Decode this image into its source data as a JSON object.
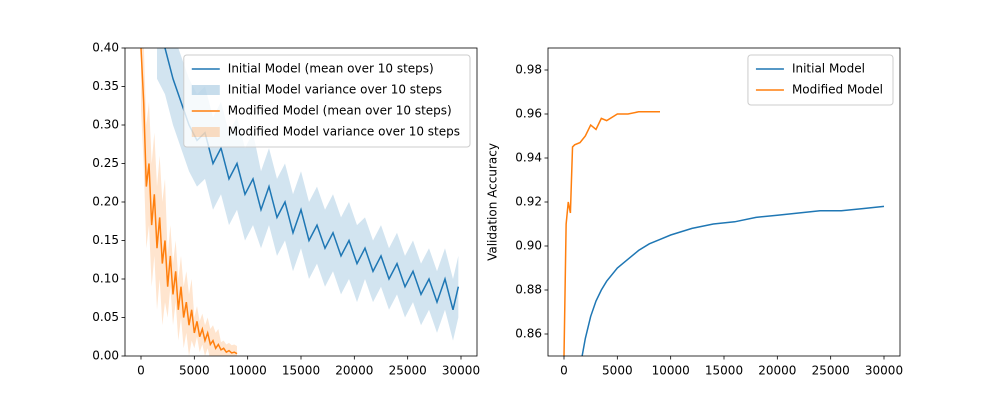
{
  "chart_data": [
    {
      "type": "line",
      "legend": "upper right",
      "xlim": [
        -1500,
        31500
      ],
      "xticks": [
        0,
        5000,
        10000,
        15000,
        20000,
        25000,
        30000
      ],
      "ylim": [
        0,
        0.4
      ],
      "yticks": [
        {
          "value": 0,
          "label": "0.00"
        },
        0.05,
        {
          "value": 0.1,
          "label": "0.10"
        },
        0.15,
        {
          "value": 0.2,
          "label": "0.20"
        },
        0.25,
        {
          "value": 0.3,
          "label": "0.30"
        },
        0.35,
        {
          "value": 0.4,
          "label": "0.40"
        }
      ],
      "series": [
        {
          "name": "Initial Model (mean over 10 steps)",
          "color": "#1f77b4",
          "x": [
            1500,
            2250,
            3000,
            3750,
            4500,
            5250,
            6000,
            6750,
            7500,
            8250,
            9000,
            9750,
            10500,
            11250,
            12000,
            12750,
            13500,
            14250,
            15000,
            15750,
            16500,
            17250,
            18000,
            18750,
            19500,
            20250,
            21000,
            21750,
            22500,
            23250,
            24000,
            24750,
            25500,
            26250,
            27000,
            27750,
            28500,
            29250,
            29750
          ],
          "values": [
            0.42,
            0.4,
            0.36,
            0.33,
            0.3,
            0.28,
            0.29,
            0.25,
            0.27,
            0.23,
            0.25,
            0.21,
            0.23,
            0.19,
            0.22,
            0.18,
            0.2,
            0.16,
            0.19,
            0.15,
            0.17,
            0.14,
            0.16,
            0.13,
            0.15,
            0.12,
            0.14,
            0.11,
            0.13,
            0.1,
            0.12,
            0.09,
            0.11,
            0.08,
            0.1,
            0.07,
            0.1,
            0.06,
            0.09
          ],
          "band": {
            "name": "Initial Model variance over 10 steps",
            "values": [
              0.06,
              0.06,
              0.06,
              0.06,
              0.06,
              0.06,
              0.06,
              0.06,
              0.06,
              0.06,
              0.06,
              0.06,
              0.06,
              0.05,
              0.05,
              0.05,
              0.05,
              0.05,
              0.05,
              0.05,
              0.05,
              0.05,
              0.05,
              0.05,
              0.05,
              0.05,
              0.04,
              0.04,
              0.04,
              0.04,
              0.04,
              0.04,
              0.04,
              0.04,
              0.04,
              0.04,
              0.04,
              0.04,
              0.04
            ]
          }
        },
        {
          "name": "Modified Model (mean over 10 steps)",
          "color": "#ff7f0e",
          "x": [
            0,
            250,
            500,
            750,
            1000,
            1250,
            1500,
            1750,
            2000,
            2250,
            2500,
            2750,
            3000,
            3250,
            3500,
            3750,
            4000,
            4250,
            4500,
            4750,
            5000,
            5250,
            5500,
            5750,
            6000,
            6250,
            6500,
            6750,
            7000,
            7250,
            7500,
            7750,
            8000,
            8250,
            8500,
            8750,
            9000
          ],
          "values": [
            0.4,
            0.33,
            0.22,
            0.25,
            0.17,
            0.21,
            0.14,
            0.18,
            0.12,
            0.15,
            0.09,
            0.13,
            0.08,
            0.11,
            0.06,
            0.09,
            0.05,
            0.07,
            0.04,
            0.06,
            0.03,
            0.045,
            0.025,
            0.035,
            0.02,
            0.03,
            0.015,
            0.02,
            0.01,
            0.015,
            0.008,
            0.01,
            0.005,
            0.007,
            0.004,
            0.005,
            0.003
          ],
          "band": {
            "name": "Modified Model variance over 10 steps",
            "values": [
              0.08,
              0.08,
              0.08,
              0.08,
              0.08,
              0.08,
              0.08,
              0.08,
              0.08,
              0.08,
              0.04,
              0.04,
              0.04,
              0.04,
              0.04,
              0.04,
              0.04,
              0.04,
              0.04,
              0.04,
              0.02,
              0.02,
              0.02,
              0.02,
              0.02,
              0.02,
              0.02,
              0.02,
              0.02,
              0.02,
              0.01,
              0.01,
              0.01,
              0.01,
              0.01,
              0.01,
              0.01
            ]
          }
        }
      ]
    },
    {
      "type": "line",
      "legend": "upper right",
      "y_label": "Validation Accuracy",
      "xlim": [
        -1500,
        31500
      ],
      "xticks": [
        0,
        5000,
        10000,
        15000,
        20000,
        25000,
        30000
      ],
      "ylim": [
        0.85,
        0.99
      ],
      "yticks": [
        0.86,
        0.88,
        {
          "value": 0.9,
          "label": "0.90"
        },
        0.92,
        0.94,
        0.96,
        0.98
      ],
      "series": [
        {
          "name": "Initial Model",
          "color": "#1f77b4",
          "x": [
            1700,
            2000,
            2500,
            3000,
            3500,
            4000,
            5000,
            6000,
            7000,
            8000,
            9000,
            10000,
            12000,
            14000,
            16000,
            18000,
            20000,
            22000,
            24000,
            26000,
            28000,
            30000
          ],
          "values": [
            0.85,
            0.858,
            0.868,
            0.875,
            0.88,
            0.884,
            0.89,
            0.894,
            0.898,
            0.901,
            0.903,
            0.905,
            0.908,
            0.91,
            0.911,
            0.913,
            0.914,
            0.915,
            0.916,
            0.916,
            0.917,
            0.918
          ]
        },
        {
          "name": "Modified Model",
          "color": "#ff7f0e",
          "x": [
            0,
            200,
            400,
            600,
            800,
            1000,
            1500,
            2000,
            2500,
            3000,
            3500,
            4000,
            5000,
            6000,
            7000,
            8000,
            9000
          ],
          "values": [
            0.85,
            0.91,
            0.92,
            0.915,
            0.945,
            0.946,
            0.947,
            0.95,
            0.955,
            0.953,
            0.958,
            0.957,
            0.96,
            0.96,
            0.961,
            0.961,
            0.961
          ]
        }
      ]
    }
  ]
}
